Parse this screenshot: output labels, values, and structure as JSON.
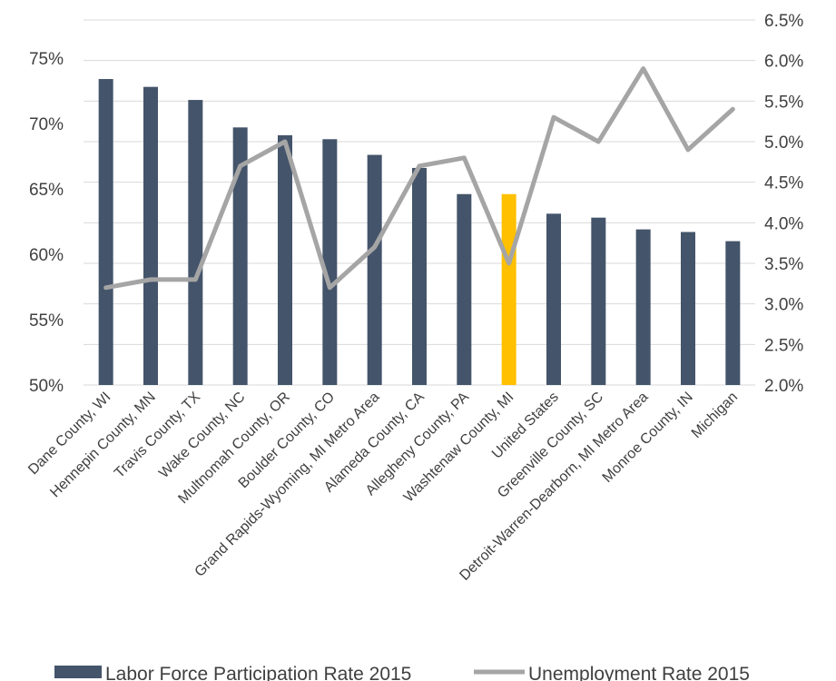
{
  "chart_data": {
    "type": "bar",
    "categories": [
      "Dane County, WI",
      "Hennepin County, MN",
      "Travis County, TX",
      "Wake County, NC",
      "Multnomah County, OR",
      "Boulder County, CO",
      "Grand Rapids-Wyoming, MI Metro Area",
      "Alameda County, CA",
      "Allegheny County, PA",
      "Washtenaw County, MI",
      "United States",
      "Greenville County, SC",
      "Detroit-Warren-Dearborn, MI Metro Area",
      "Monroe County, IN",
      "Michigan"
    ],
    "series": [
      {
        "name": "Labor Force Participation Rate 2015",
        "type": "bar",
        "axis": "left",
        "color": "#44546a",
        "values": [
          73.4,
          72.8,
          71.8,
          69.7,
          69.1,
          68.8,
          67.6,
          66.6,
          64.6,
          64.6,
          63.1,
          62.8,
          61.9,
          61.7,
          61.0
        ]
      },
      {
        "name": "Unemployment Rate 2015",
        "type": "line",
        "axis": "right",
        "color": "#a5a5a5",
        "values": [
          3.2,
          3.3,
          3.3,
          4.7,
          5.0,
          3.2,
          3.7,
          4.7,
          4.8,
          3.5,
          5.3,
          5.0,
          5.9,
          4.9,
          5.4
        ]
      }
    ],
    "highlight_index": 9,
    "highlight_color": "#ffc000",
    "y_left": {
      "min": 50,
      "max": 75,
      "step": 5,
      "suffix": "%",
      "decimals": 0
    },
    "y_right": {
      "min": 2.0,
      "max": 6.5,
      "step": 0.5,
      "suffix": "%",
      "decimals": 1
    },
    "grid": true,
    "legend_position": "bottom"
  }
}
